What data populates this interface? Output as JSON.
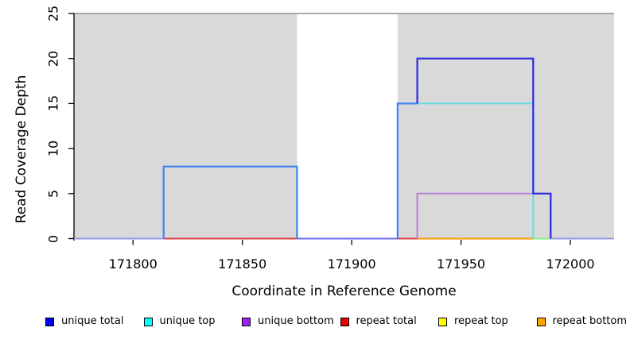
{
  "chart_data": {
    "type": "line",
    "subtype": "step-coverage-plot",
    "title": "",
    "xlabel": "Coordinate in Reference Genome",
    "ylabel": "Read Coverage Depth",
    "xlim": [
      171773,
      172020
    ],
    "ylim": [
      0,
      25
    ],
    "x_ticks": [
      171800,
      171850,
      171900,
      171950,
      172000
    ],
    "y_ticks": [
      0,
      5,
      10,
      15,
      20,
      25
    ],
    "grid": false,
    "shaded_regions": [
      {
        "start": 171773,
        "end": 171875,
        "color": "#d9d9d9"
      },
      {
        "start": 171921,
        "end": 172020,
        "color": "#d9d9d9"
      }
    ],
    "coverage_steps": {
      "unique_total": [
        [
          171773,
          0
        ],
        [
          171814,
          0
        ],
        [
          171814,
          8
        ],
        [
          171875,
          8
        ],
        [
          171875,
          0
        ],
        [
          171921,
          0
        ],
        [
          171921,
          15
        ],
        [
          171930,
          15
        ],
        [
          171930,
          20
        ],
        [
          171983,
          20
        ],
        [
          171983,
          5
        ],
        [
          171991,
          5
        ],
        [
          171991,
          0
        ],
        [
          172020,
          0
        ]
      ],
      "unique_top": [
        [
          171814,
          8
        ],
        [
          171875,
          8
        ],
        [
          171921,
          15
        ],
        [
          171930,
          15
        ],
        [
          171930,
          15
        ],
        [
          171983,
          15
        ],
        [
          171983,
          0
        ]
      ],
      "unique_bottom": [
        [
          171930,
          0
        ],
        [
          171930,
          5
        ],
        [
          171991,
          5
        ],
        [
          171991,
          0
        ]
      ],
      "repeat_total_zero_spans": [
        [
          171814,
          171875
        ],
        [
          171921,
          171930
        ]
      ],
      "repeat_top_zero_span": [
        171983,
        171991
      ],
      "repeat_bottom_zero_span": [
        171930,
        171983
      ]
    },
    "rendered_lines": [
      {
        "name": "baseline-zero-lavender",
        "color": "#9595EC",
        "width": 2,
        "points": [
          [
            171773,
            0
          ],
          [
            172020,
            0
          ]
        ]
      },
      {
        "name": "repeat-total-zero-a",
        "color": "#E04040",
        "width": 2,
        "points": [
          [
            171814,
            0
          ],
          [
            171875,
            0
          ]
        ]
      },
      {
        "name": "repeat-total-zero-b",
        "color": "#E04040",
        "width": 2,
        "points": [
          [
            171921,
            0
          ],
          [
            171930,
            0
          ]
        ]
      },
      {
        "name": "repeat-bottom-zero",
        "color": "#FFA21A",
        "width": 2.2,
        "points": [
          [
            171930,
            0
          ],
          [
            171983,
            0
          ]
        ]
      },
      {
        "name": "repeat-top-cyan-blend",
        "color": "#90EE90",
        "width": 2.2,
        "points": [
          [
            171983,
            0
          ],
          [
            171991,
            0
          ]
        ]
      },
      {
        "name": "gap-zero-blue",
        "color": "#6B6BEF",
        "width": 2,
        "points": [
          [
            171875,
            0
          ],
          [
            171921,
            0
          ]
        ]
      },
      {
        "name": "unique-bottom-step",
        "color": "#B87FD9",
        "width": 2,
        "points": [
          [
            171930,
            0
          ],
          [
            171930,
            5
          ],
          [
            171991,
            5
          ],
          [
            171991,
            0
          ]
        ]
      },
      {
        "name": "unique-top-step",
        "color": "#5FE0E6",
        "width": 2,
        "points": [
          [
            171930,
            15
          ],
          [
            171983,
            15
          ],
          [
            171983,
            0
          ]
        ]
      },
      {
        "name": "unique-total-left-step",
        "color": "#4183F2",
        "width": 2.2,
        "points": [
          [
            171814,
            0
          ],
          [
            171814,
            8
          ],
          [
            171875,
            8
          ],
          [
            171875,
            0
          ]
        ]
      },
      {
        "name": "unique-total-mid-step",
        "color": "#4183F2",
        "width": 2.2,
        "points": [
          [
            171921,
            0
          ],
          [
            171921,
            15
          ],
          [
            171930,
            15
          ]
        ]
      },
      {
        "name": "unique-total-high-step",
        "color": "#2B2BDE",
        "width": 2.2,
        "points": [
          [
            171930,
            15
          ],
          [
            171930,
            20
          ],
          [
            171983,
            20
          ],
          [
            171983,
            5
          ],
          [
            171991,
            5
          ],
          [
            171991,
            0
          ]
        ]
      }
    ],
    "legend": {
      "position": "bottom",
      "entries": [
        {
          "label": "unique total",
          "color": "#0000EE"
        },
        {
          "label": "unique top",
          "color": "#00FFFF"
        },
        {
          "label": "unique bottom",
          "color": "#A020F0"
        },
        {
          "label": "repeat total",
          "color": "#EE0000"
        },
        {
          "label": "repeat top",
          "color": "#FFFF00"
        },
        {
          "label": "repeat bottom",
          "color": "#FFA500"
        }
      ]
    },
    "colors": {
      "shaded_region": "#d9d9d9",
      "plot_top_border": "#909090",
      "axis": "#000000"
    }
  }
}
